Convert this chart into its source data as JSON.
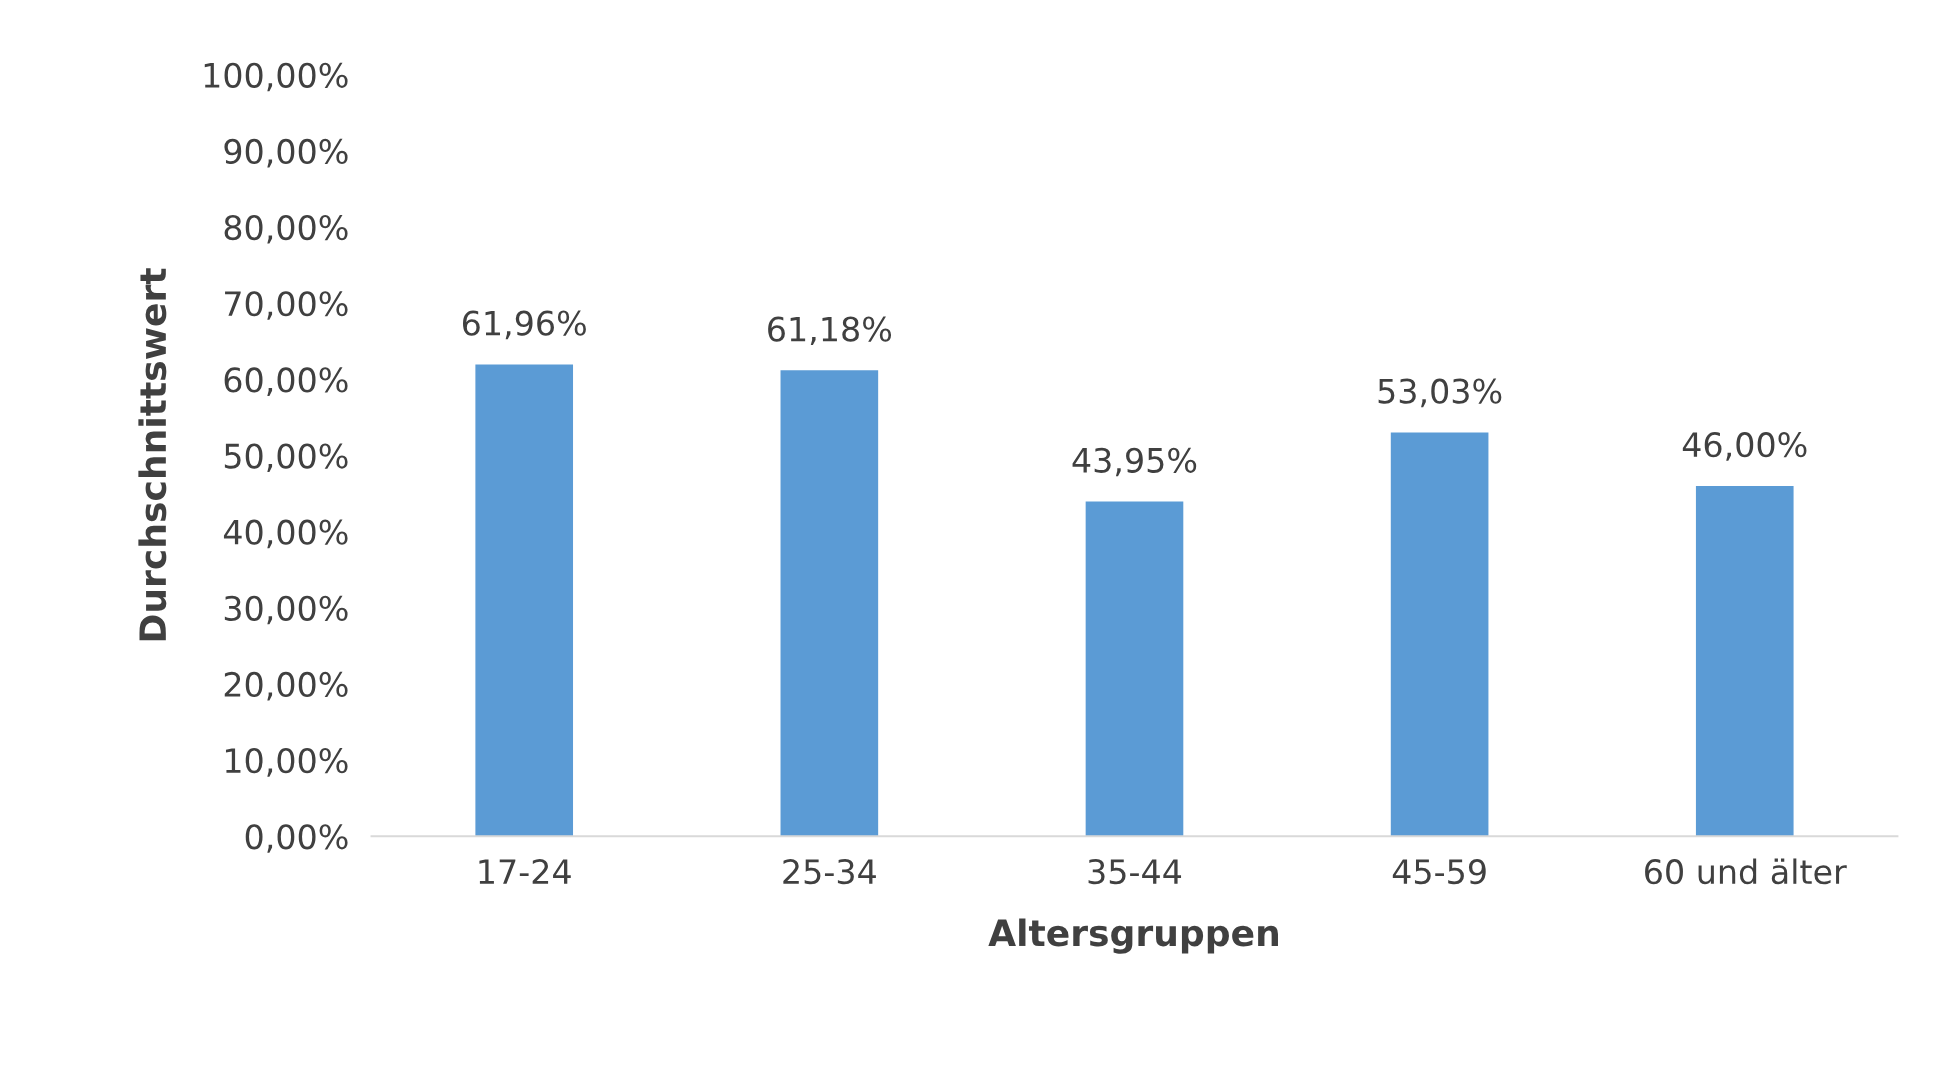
{
  "chart_data": {
    "type": "bar",
    "xlabel": "Altersgruppen",
    "ylabel": "Durchschnittswert",
    "categories": [
      "17-24",
      "25-34",
      "35-44",
      "45-59",
      "60 und älter"
    ],
    "values": [
      61.96,
      61.18,
      43.95,
      53.03,
      46.0
    ],
    "value_labels": [
      "61,96%",
      "61,18%",
      "43,95%",
      "53,03%",
      "46,00%"
    ],
    "color": "#5b9bd5",
    "ylim": [
      0,
      100
    ],
    "yticks": [
      {
        "value": 0,
        "label": "0,00%"
      },
      {
        "value": 10,
        "label": "10,00%"
      },
      {
        "value": 20,
        "label": "20,00%"
      },
      {
        "value": 30,
        "label": "30,00%"
      },
      {
        "value": 40,
        "label": "40,00%"
      },
      {
        "value": 50,
        "label": "50,00%"
      },
      {
        "value": 60,
        "label": "60,00%"
      },
      {
        "value": 70,
        "label": "70,00%"
      },
      {
        "value": 80,
        "label": "80,00%"
      },
      {
        "value": 90,
        "label": "90,00%"
      },
      {
        "value": 100,
        "label": "100,00%"
      }
    ],
    "grid": false
  }
}
